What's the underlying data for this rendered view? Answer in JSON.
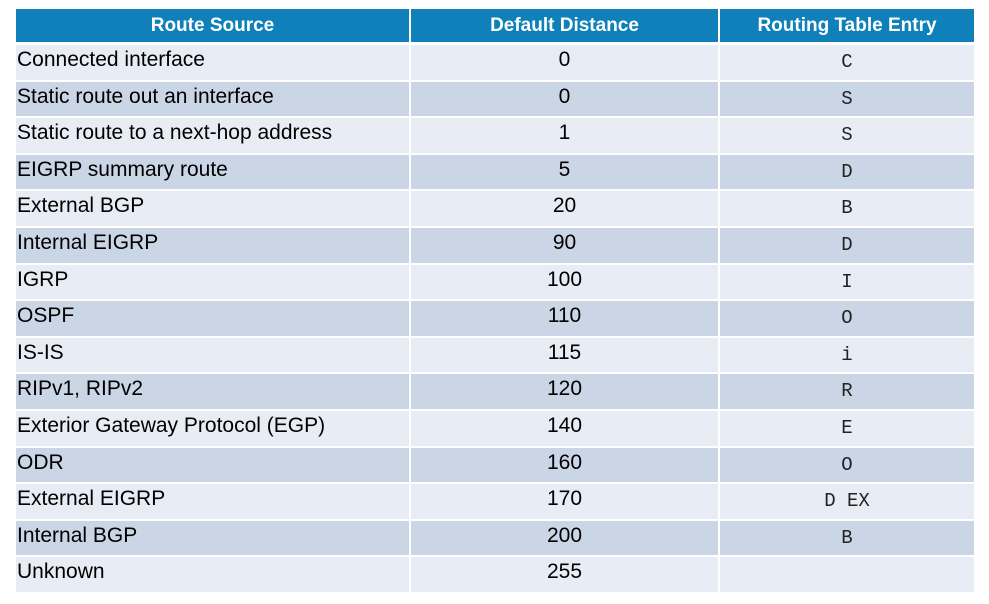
{
  "table": {
    "headers": [
      "Route Source",
      "Default Distance",
      "Routing Table Entry"
    ],
    "rows": [
      {
        "source": "Connected interface",
        "distance": "0",
        "code": "C"
      },
      {
        "source": "Static route out an interface",
        "distance": "0",
        "code": "S"
      },
      {
        "source": "Static route to a next-hop address",
        "distance": "1",
        "code": "S"
      },
      {
        "source": "EIGRP summary route",
        "distance": "5",
        "code": "D"
      },
      {
        "source": "External BGP",
        "distance": "20",
        "code": "B"
      },
      {
        "source": "Internal EIGRP",
        "distance": "90",
        "code": "D"
      },
      {
        "source": "IGRP",
        "distance": "100",
        "code": "I"
      },
      {
        "source": "OSPF",
        "distance": "110",
        "code": "O"
      },
      {
        "source": "IS-IS",
        "distance": "115",
        "code": "i"
      },
      {
        "source": "RIPv1, RIPv2",
        "distance": "120",
        "code": "R"
      },
      {
        "source": "Exterior Gateway Protocol (EGP)",
        "distance": "140",
        "code": "E"
      },
      {
        "source": "ODR",
        "distance": "160",
        "code": "O"
      },
      {
        "source": "External EIGRP",
        "distance": "170",
        "code": "D EX"
      },
      {
        "source": "Internal BGP",
        "distance": "200",
        "code": "B"
      },
      {
        "source": "Unknown",
        "distance": "255",
        "code": ""
      }
    ]
  },
  "colors": {
    "header_bg": "#0f80ba",
    "row_light": "#e8edf5",
    "row_dark": "#cad6e5"
  }
}
